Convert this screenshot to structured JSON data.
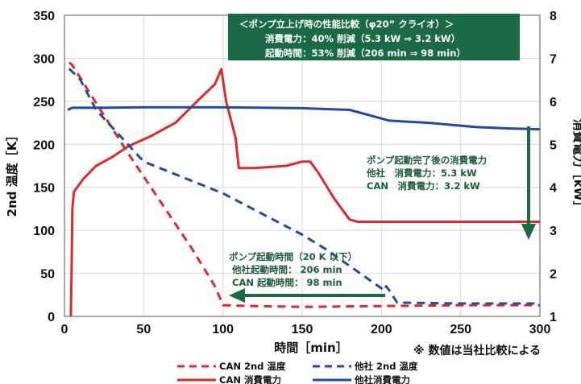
{
  "chart_data": {
    "type": "line",
    "xlabel": "時間［min］",
    "ylabel_left": "2nd 温度［K］",
    "ylabel_right": "消費電力［kW］",
    "xlim": [
      0,
      300
    ],
    "ylim_left": [
      0,
      350
    ],
    "ylim_right": [
      1,
      8
    ],
    "x_ticks": [
      "0",
      "50",
      "100",
      "150",
      "200",
      "250",
      "300"
    ],
    "y_left_ticks": [
      "0",
      "50",
      "100",
      "150",
      "200",
      "250",
      "300",
      "350"
    ],
    "y_right_ticks": [
      "1",
      "2",
      "3",
      "4",
      "5",
      "6",
      "7",
      "8"
    ],
    "grid": true,
    "series": [
      {
        "name": "CAN 2nd 温度",
        "axis": "left",
        "style": "dashed",
        "color": "#e02a2a",
        "x": [
          3,
          5,
          20,
          40,
          60,
          80,
          90,
          95,
          98,
          100,
          120,
          150,
          200,
          250,
          300
        ],
        "y": [
          295,
          292,
          248,
          190,
          135,
          80,
          50,
          35,
          22,
          13,
          12,
          11,
          12,
          13,
          13
        ]
      },
      {
        "name": "CAN 消費電力",
        "axis": "right",
        "color": "#e02a2a",
        "x": [
          4,
          4.5,
          5,
          6,
          8,
          12,
          20,
          30,
          40,
          55,
          70,
          85,
          95,
          99,
          100,
          102,
          108,
          110,
          120,
          140,
          150,
          155,
          160,
          170,
          180,
          185,
          200,
          250,
          300
        ],
        "y": [
          1.0,
          2.0,
          3.5,
          3.9,
          4.0,
          4.2,
          4.5,
          4.7,
          4.95,
          5.2,
          5.5,
          6.05,
          6.4,
          6.75,
          6.5,
          6.0,
          5.15,
          4.45,
          4.45,
          4.5,
          4.6,
          4.6,
          4.35,
          3.75,
          3.25,
          3.2,
          3.2,
          3.2,
          3.2
        ]
      },
      {
        "name": "他社 2nd 温度",
        "axis": "left",
        "style": "dashed",
        "color": "#1f4aa8",
        "x": [
          3,
          10,
          20,
          50,
          100,
          150,
          165,
          202,
          203,
          205,
          210,
          250,
          300
        ],
        "y": [
          288,
          275,
          240,
          180,
          143,
          95,
          78,
          30,
          35,
          30,
          16,
          15,
          15
        ]
      },
      {
        "name": "他社消費電力",
        "axis": "right",
        "color": "#1f4aa8",
        "x": [
          2,
          5,
          20,
          50,
          100,
          150,
          180,
          200,
          205,
          230,
          260,
          280,
          300
        ],
        "y": [
          5.8,
          5.85,
          5.85,
          5.86,
          5.86,
          5.84,
          5.8,
          5.6,
          5.55,
          5.5,
          5.4,
          5.37,
          5.35
        ]
      }
    ]
  },
  "summary_box": {
    "line1": "＜ポンプ立上げ時の性能比較（φ20” クライオ）＞",
    "line2": "消費電力：40% 削減（5.3 kW ⇒ 3.2 kW）",
    "line3": "起動時間：53% 削減（206 min ⇒ 98 min）"
  },
  "power_note": {
    "line1": "ポンプ起動完了後の消費電力",
    "line2": "他社　消費電力：5.3 kW",
    "line3": "CAN　消費電力：3.2 kW"
  },
  "time_note": {
    "line1": "ポンプ起動時間（20 K 以下）",
    "line2": "他社起動時間：  206 min",
    "line3": "CAN 起動時間：   98 min"
  },
  "disclaimer": "※ 数値は当社比較による",
  "legend": {
    "can_temp": "CAN 2nd 温度",
    "other_temp": "他社 2nd 温度",
    "can_power": "CAN 消費電力",
    "other_power": "他社消費電力"
  },
  "colors": {
    "red": "#e02a2a",
    "blue": "#1f4aa8",
    "green": "#1a6a45",
    "grid": "#d9d9d9"
  }
}
